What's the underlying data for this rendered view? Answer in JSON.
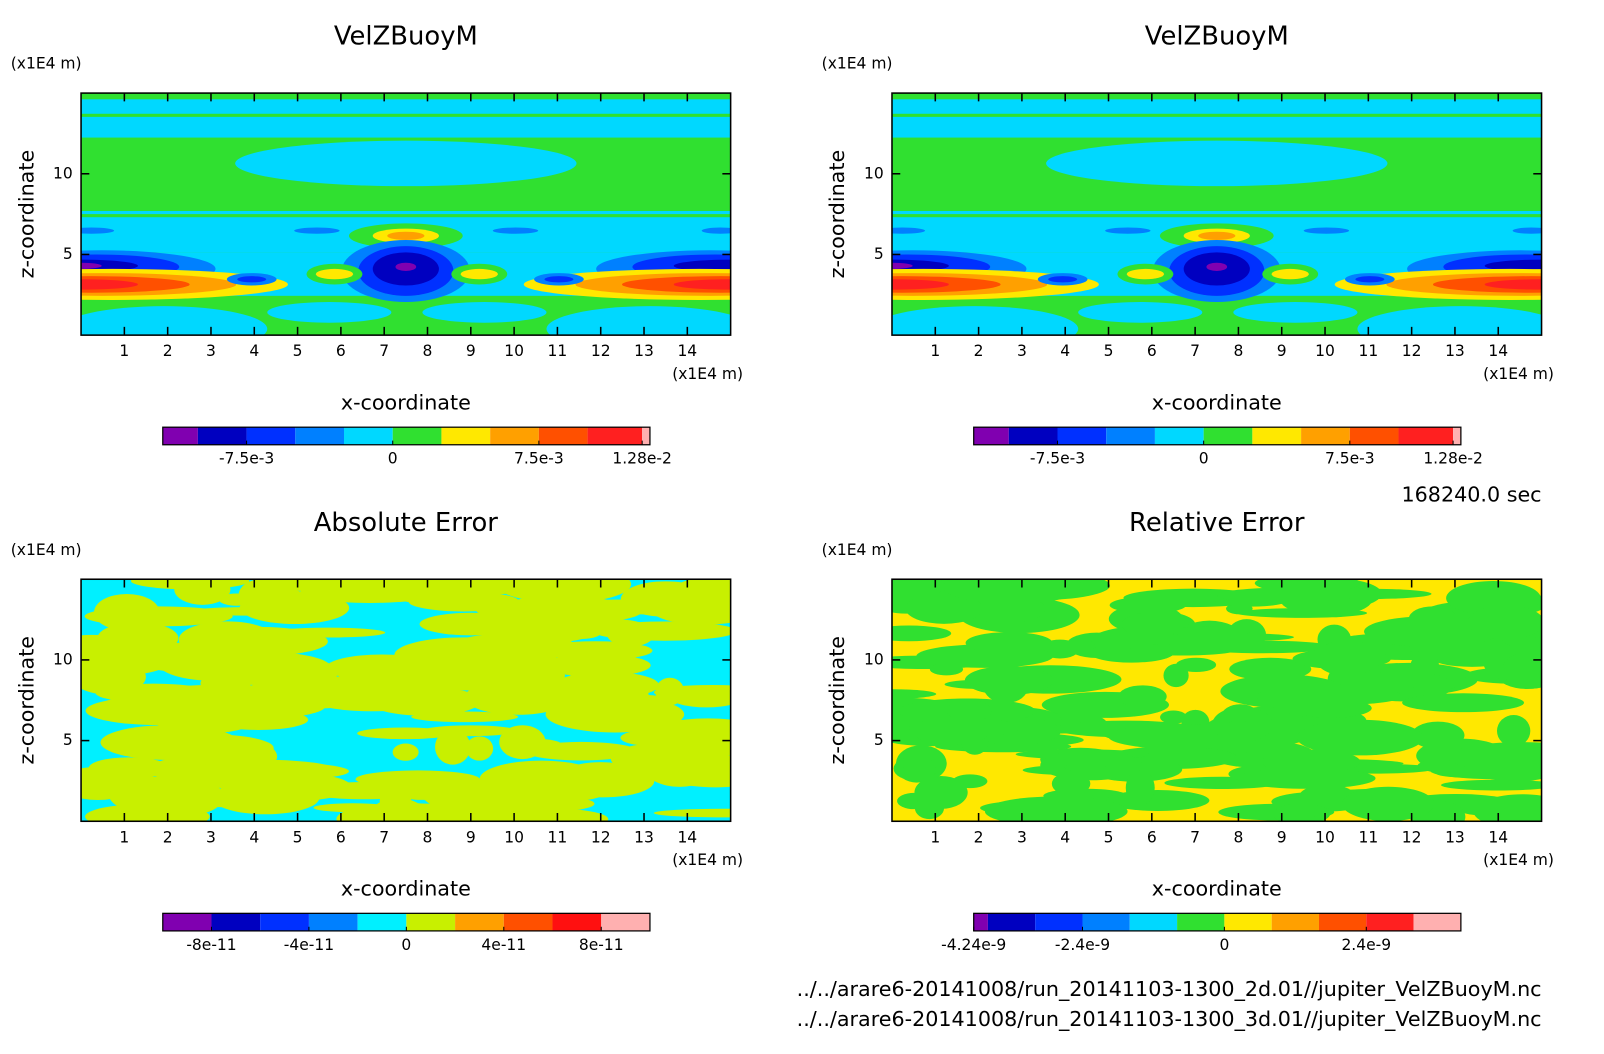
{
  "chart_data": [
    {
      "type": "contour",
      "title": "VelZBuoyM",
      "x_label": "x-coordinate",
      "y_label": "z-coordinate",
      "x_unit": "(x1E4 m)",
      "y_unit": "(x1E4 m)",
      "xlim": [
        0,
        15
      ],
      "ylim": [
        0,
        15
      ],
      "xticks": [
        1,
        2,
        3,
        4,
        5,
        6,
        7,
        8,
        9,
        10,
        11,
        12,
        13,
        14
      ],
      "yticks": [
        5,
        10
      ],
      "colorbar": {
        "colors": [
          "#8000b0",
          "#0000c0",
          "#0030ff",
          "#0080ff",
          "#00d8ff",
          "#30e030",
          "#ffe800",
          "#ffa000",
          "#ff5000",
          "#ff2020",
          "#ffb0b0"
        ],
        "bounds": [
          -0.0118,
          -0.01,
          -0.0075,
          -0.005,
          -0.0025,
          0,
          0.0025,
          0.005,
          0.0075,
          0.01,
          0.0128,
          0.0132
        ],
        "ticks": [
          {
            "value": -0.0075,
            "label": "-7.5e-3"
          },
          0,
          {
            "value": 0.0075,
            "label": "7.5e-3"
          },
          {
            "value": 0.0128,
            "label": "1.28e-2"
          }
        ]
      }
    },
    {
      "type": "contour",
      "title": "VelZBuoyM",
      "x_label": "x-coordinate",
      "y_label": "z-coordinate",
      "x_unit": "(x1E4 m)",
      "y_unit": "(x1E4 m)",
      "xlim": [
        0,
        15
      ],
      "ylim": [
        0,
        15
      ],
      "xticks": [
        1,
        2,
        3,
        4,
        5,
        6,
        7,
        8,
        9,
        10,
        11,
        12,
        13,
        14
      ],
      "yticks": [
        5,
        10
      ],
      "colorbar": {
        "colors": [
          "#8000b0",
          "#0000c0",
          "#0030ff",
          "#0080ff",
          "#00d8ff",
          "#30e030",
          "#ffe800",
          "#ffa000",
          "#ff5000",
          "#ff2020",
          "#ffb0b0"
        ],
        "bounds": [
          -0.0118,
          -0.01,
          -0.0075,
          -0.005,
          -0.0025,
          0,
          0.0025,
          0.005,
          0.0075,
          0.01,
          0.0128,
          0.0132
        ],
        "ticks": [
          {
            "value": -0.0075,
            "label": "-7.5e-3"
          },
          0,
          {
            "value": 0.0075,
            "label": "7.5e-3"
          },
          {
            "value": 0.0128,
            "label": "1.28e-2"
          }
        ]
      }
    },
    {
      "type": "contour",
      "title": "Absolute Error",
      "x_label": "x-coordinate",
      "y_label": "z-coordinate",
      "x_unit": "(x1E4 m)",
      "y_unit": "(x1E4 m)",
      "xlim": [
        0,
        15
      ],
      "ylim": [
        0,
        15
      ],
      "xticks": [
        1,
        2,
        3,
        4,
        5,
        6,
        7,
        8,
        9,
        10,
        11,
        12,
        13,
        14
      ],
      "yticks": [
        5,
        10
      ],
      "colorbar": {
        "colors": [
          "#8000b0",
          "#0000c0",
          "#0030ff",
          "#0080ff",
          "#00f0ff",
          "#c8f000",
          "#ffa000",
          "#ff5000",
          "#ff1010",
          "#ffb0b0"
        ],
        "bounds": [
          -1e-10,
          -8e-11,
          -6e-11,
          -4e-11,
          -2e-11,
          0,
          2e-11,
          4e-11,
          6e-11,
          8e-11,
          1e-10
        ],
        "ticks": [
          {
            "value": -8e-11,
            "label": "-8e-11"
          },
          {
            "value": -4e-11,
            "label": "-4e-11"
          },
          0,
          {
            "value": 4e-11,
            "label": "4e-11"
          },
          {
            "value": 8e-11,
            "label": "8e-11"
          }
        ]
      }
    },
    {
      "type": "contour",
      "title": "Relative Error",
      "x_label": "x-coordinate",
      "y_label": "z-coordinate",
      "x_unit": "(x1E4 m)",
      "y_unit": "(x1E4 m)",
      "xlim": [
        0,
        15
      ],
      "ylim": [
        0,
        15
      ],
      "xticks": [
        1,
        2,
        3,
        4,
        5,
        6,
        7,
        8,
        9,
        10,
        11,
        12,
        13,
        14
      ],
      "yticks": [
        5,
        10
      ],
      "colorbar": {
        "colors": [
          "#8000b0",
          "#0000c0",
          "#0030ff",
          "#0080ff",
          "#00d8ff",
          "#30e030",
          "#ffe800",
          "#ffa000",
          "#ff5000",
          "#ff2020",
          "#ffb0b0"
        ],
        "bounds": [
          -4.24e-09,
          -4e-09,
          -3.2e-09,
          -2.4e-09,
          -1.6e-09,
          -8e-10,
          0,
          8e-10,
          1.6e-09,
          2.4e-09,
          3.2e-09,
          4e-09
        ],
        "ticks": [
          {
            "value": -4.24e-09,
            "label": "-4.24e-9"
          },
          {
            "value": -2.4e-09,
            "label": "-2.4e-9"
          },
          0,
          {
            "value": 2.4e-09,
            "label": "2.4e-9"
          }
        ]
      }
    }
  ],
  "time_label": "168240.0 sec",
  "files": [
    "../../arare6-20141008/run_20141103-1300_2d.01//jupiter_VelZBuoyM.nc",
    "../../arare6-20141008/run_20141103-1300_3d.01//jupiter_VelZBuoyM.nc"
  ]
}
